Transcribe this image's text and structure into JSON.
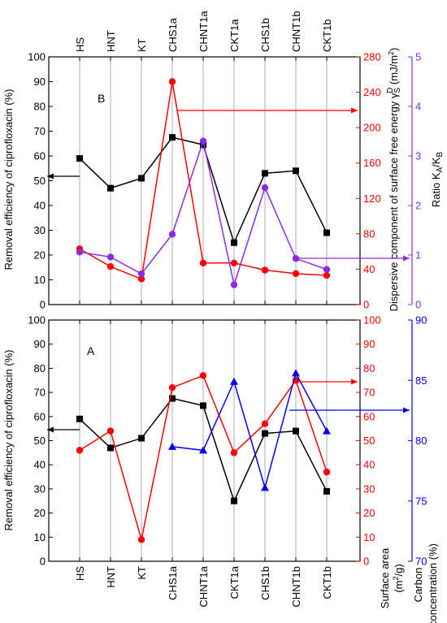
{
  "chart_data": [
    {
      "panel_label": "B",
      "type": "line",
      "categories": [
        "HS",
        "HNT",
        "KT",
        "CHS1a",
        "CHNT1a",
        "CKT1a",
        "CHS1b",
        "CHNT1b",
        "CKT1b"
      ],
      "ylabel_left": "Removal efficiency of ciprofloxacin  (%)",
      "ylabel_right1": "Dispersive component of surface free energy γS^D (mJ/m²)",
      "ylabel_right2": "Ratio KA/KB",
      "ylim_left": [
        0,
        100
      ],
      "ylim_right1": [
        0,
        280
      ],
      "ylim_right2": [
        0,
        5
      ],
      "left_ticks": [
        "0",
        "10",
        "20",
        "30",
        "40",
        "50",
        "60",
        "70",
        "80",
        "90",
        "100"
      ],
      "right1_ticks": [
        "0",
        "40",
        "80",
        "120",
        "160",
        "200",
        "240",
        "280"
      ],
      "right2_ticks": [
        "0",
        "1",
        "2",
        "3",
        "4",
        "5"
      ],
      "grid": "vertical",
      "series": [
        {
          "axis": "left",
          "color": "#000000",
          "marker": "square",
          "values": [
            59,
            47,
            51,
            67.5,
            64.5,
            25,
            53,
            54,
            29
          ]
        },
        {
          "axis": "right1",
          "color": "#ff0000",
          "marker": "circle",
          "values": [
            63,
            43,
            29,
            252,
            47,
            47,
            39,
            35,
            33
          ]
        },
        {
          "axis": "right2",
          "color": "#8b2be2",
          "marker": "circle",
          "values": [
            1.06,
            0.96,
            0.62,
            1.42,
            3.3,
            0.4,
            2.36,
            0.93,
            0.71
          ]
        }
      ]
    },
    {
      "panel_label": "A",
      "type": "line",
      "categories": [
        "HS",
        "HNT",
        "KT",
        "CHS1a",
        "CHNT1a",
        "CKT1a",
        "CHS1b",
        "CHNT1b",
        "CKT1b"
      ],
      "ylabel_left": "Removal efficiency of ciprofloxacin  (%)",
      "ylabel_right1": "Surface area (m²/g)",
      "ylabel_right2": "Carbon concentration  (%)",
      "ylim_left": [
        0,
        100
      ],
      "ylim_right1": [
        0,
        100
      ],
      "ylim_right2": [
        70,
        90
      ],
      "left_ticks": [
        "0",
        "10",
        "20",
        "30",
        "40",
        "50",
        "60",
        "70",
        "80",
        "90",
        "100"
      ],
      "right1_ticks": [
        "0",
        "10",
        "20",
        "30",
        "40",
        "50",
        "60",
        "70",
        "80",
        "90",
        "100"
      ],
      "right2_ticks": [
        "70",
        "75",
        "80",
        "85",
        "90"
      ],
      "grid": "vertical",
      "series": [
        {
          "axis": "left",
          "color": "#000000",
          "marker": "square",
          "values": [
            59,
            47,
            51,
            67.5,
            64.5,
            25,
            53,
            54,
            29
          ]
        },
        {
          "axis": "right1",
          "color": "#ff0000",
          "marker": "circle",
          "values": [
            46,
            54,
            9,
            72,
            77,
            45,
            57,
            75,
            37
          ]
        },
        {
          "axis": "right2",
          "color": "#0000ff",
          "marker": "triangle",
          "values": [
            null,
            null,
            null,
            79.5,
            79.2,
            84.9,
            76.1,
            85.6,
            80.8
          ]
        }
      ]
    }
  ]
}
